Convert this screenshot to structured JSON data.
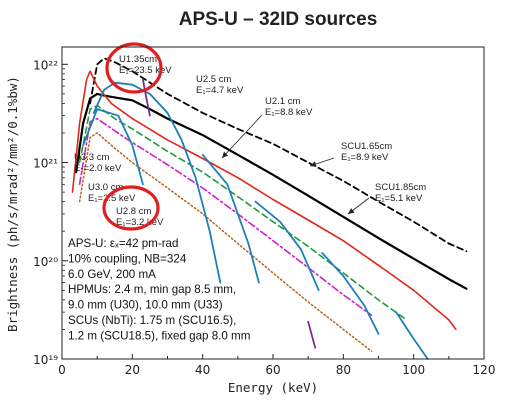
{
  "chart_data": {
    "type": "line",
    "title": "APS-U – 32ID sources",
    "xlabel": "Energy (keV)",
    "ylabel": "Brightness (ph/s/mrad²/mm²/0.1%bw)",
    "xlim": [
      0,
      120
    ],
    "ylim": [
      1e+19,
      1.5e+22
    ],
    "yscale": "log",
    "x_ticks": [
      0,
      20,
      40,
      60,
      80,
      100,
      120
    ],
    "y_ticks": [
      {
        "value": 1e+19,
        "label": "10¹⁹"
      },
      {
        "value": 1e+20,
        "label": "10²⁰"
      },
      {
        "value": 1e+21,
        "label": "10²¹"
      },
      {
        "value": 1e+22,
        "label": "10²²"
      }
    ],
    "grid": false,
    "series": [
      {
        "color": "#000000",
        "style": "solid",
        "width": 2.2,
        "segments": [
          [
            [
              4,
              8e+20
            ],
            [
              6,
              2.5e+21
            ],
            [
              8,
              4.5e+21
            ],
            [
              10,
              5e+21
            ],
            [
              12,
              4.8e+21
            ],
            [
              15,
              4.6e+21
            ],
            [
              20,
              4.3e+21
            ],
            [
              25,
              3.5e+21
            ],
            [
              30,
              2.8e+21
            ],
            [
              40,
              1.9e+21
            ],
            [
              50,
              1.2e+21
            ],
            [
              60,
              7.5e+20
            ],
            [
              70,
              4.6e+20
            ],
            [
              80,
              2.8e+20
            ],
            [
              90,
              1.7e+20
            ],
            [
              100,
              1.05e+20
            ],
            [
              110,
              6.5e+19
            ],
            [
              115,
              5.2e+19
            ]
          ]
        ]
      },
      {
        "color": "#000000",
        "style": "dashed",
        "width": 1.8,
        "segments": [
          [
            [
              8,
              4e+21
            ],
            [
              10,
              1e+22
            ],
            [
              12,
              1.15e+22
            ],
            [
              15,
              1.05e+22
            ],
            [
              20,
              8.5e+21
            ],
            [
              30,
              5e+21
            ],
            [
              40,
              3.2e+21
            ],
            [
              50,
              2.2e+21
            ],
            [
              60,
              1.55e+21
            ],
            [
              70,
              1e+21
            ],
            [
              80,
              6.5e+20
            ],
            [
              90,
              4e+20
            ],
            [
              100,
              2.5e+20
            ],
            [
              110,
              1.5e+20
            ],
            [
              115,
              1.25e+20
            ]
          ]
        ]
      },
      {
        "color": "#e1261c",
        "style": "solid",
        "width": 1.6,
        "segments": [
          [
            [
              3,
              5e+20
            ],
            [
              5,
              2.5e+21
            ],
            [
              7,
              7e+21
            ],
            [
              8,
              8.5e+21
            ],
            [
              10,
              6e+21
            ],
            [
              14,
              4e+21
            ],
            [
              20,
              2.8e+21
            ],
            [
              30,
              1.7e+21
            ],
            [
              40,
              1.1e+21
            ],
            [
              50,
              7e+20
            ],
            [
              60,
              4.2e+20
            ],
            [
              70,
              2.6e+20
            ],
            [
              80,
              1.6e+20
            ],
            [
              90,
              9e+19
            ],
            [
              100,
              5e+19
            ],
            [
              110,
              2.5e+19
            ],
            [
              112,
              2e+19
            ]
          ]
        ]
      },
      {
        "color": "#229a3a",
        "style": "dashed",
        "width": 1.6,
        "segments": [
          [
            [
              5,
              1e+21
            ],
            [
              8,
              3.5e+21
            ],
            [
              10,
              3.8e+21
            ],
            [
              15,
              2.8e+21
            ],
            [
              20,
              2.2e+21
            ],
            [
              30,
              1.3e+21
            ],
            [
              40,
              8e+20
            ],
            [
              50,
              4.5e+20
            ],
            [
              60,
              2.5e+20
            ],
            [
              70,
              1.4e+20
            ],
            [
              80,
              7.5e+19
            ],
            [
              90,
              4e+19
            ],
            [
              98,
              2.5e+19
            ]
          ]
        ]
      },
      {
        "color": "#cc22cc",
        "style": "dashdot",
        "width": 1.6,
        "segments": [
          [
            [
              5,
              6e+20
            ],
            [
              8,
              2.6e+21
            ],
            [
              10,
              2.8e+21
            ],
            [
              15,
              2.1e+21
            ],
            [
              20,
              1.6e+21
            ],
            [
              30,
              9.5e+20
            ],
            [
              40,
              5.5e+20
            ],
            [
              50,
              3e+20
            ],
            [
              60,
              1.6e+20
            ],
            [
              70,
              8.5e+19
            ],
            [
              80,
              4.5e+19
            ],
            [
              88,
              2.8e+19
            ]
          ]
        ]
      },
      {
        "color": "#b5651d",
        "style": "dotted",
        "width": 1.5,
        "segments": [
          [
            [
              5,
              4e+20
            ],
            [
              8,
              1.8e+21
            ],
            [
              10,
              2e+21
            ],
            [
              15,
              1.4e+21
            ],
            [
              20,
              1e+21
            ],
            [
              30,
              5.5e+20
            ],
            [
              40,
              3e+20
            ],
            [
              50,
              1.5e+20
            ],
            [
              60,
              7.5e+19
            ],
            [
              70,
              3.8e+19
            ],
            [
              80,
              2e+19
            ],
            [
              88,
              1.2e+19
            ]
          ]
        ]
      },
      {
        "color": "#1e7fb8",
        "style": "solid",
        "width": 1.8,
        "segments": [
          [
            [
              9,
              3.2e+21
            ],
            [
              12,
              5.5e+21
            ],
            [
              15,
              6.5e+21
            ],
            [
              20,
              6.2e+21
            ],
            [
              25,
              5e+21
            ],
            [
              30,
              3.2e+21
            ],
            [
              34,
              1.7e+21
            ],
            [
              38,
              7e+20
            ],
            [
              42,
              2e+20
            ],
            [
              45,
              6e+19
            ]
          ],
          [
            [
              6,
              1.5e+21
            ],
            [
              10,
              3.5e+21
            ],
            [
              16,
              3e+21
            ],
            [
              20,
              1.5e+21
            ],
            [
              23,
              6e+20
            ]
          ],
          [
            [
              40,
              1.2e+21
            ],
            [
              47,
              6e+20
            ],
            [
              53,
              1.5e+20
            ],
            [
              56,
              6e+19
            ]
          ],
          [
            [
              55,
              4e+20
            ],
            [
              62,
              2.5e+20
            ],
            [
              68,
              1.3e+20
            ],
            [
              73,
              5e+19
            ]
          ],
          [
            [
              74,
              1.2e+20
            ],
            [
              80,
              7e+19
            ],
            [
              86,
              3.5e+19
            ],
            [
              90,
              1.8e+19
            ]
          ],
          [
            [
              95,
              3e+19
            ],
            [
              100,
              1.6e+19
            ],
            [
              104,
              1e+19
            ]
          ]
        ]
      },
      {
        "color": "#7b2d8e",
        "style": "solid",
        "width": 1.8,
        "segments": [
          [
            [
              23,
              7e+21
            ],
            [
              24,
              4.5e+21
            ],
            [
              25,
              3e+21
            ]
          ],
          [
            [
              70,
              2.4e+19
            ],
            [
              72,
              1.3e+19
            ]
          ]
        ]
      }
    ],
    "annotations": [
      {
        "lines": [
          "U1.35cm",
          "E₁=23.5 keV"
        ],
        "circled": true
      },
      {
        "lines": [
          "U2.5 cm",
          "E₁=4.7 keV"
        ]
      },
      {
        "lines": [
          "U2.1 cm",
          "E₁=8.8 keV"
        ]
      },
      {
        "lines": [
          "SCU1.65cm",
          "E₁=8.9 keV"
        ]
      },
      {
        "lines": [
          "SCU1.85cm",
          "E₁=5.1 keV"
        ]
      },
      {
        "lines": [
          "U3.3 cm",
          "E₁=2.0 keV"
        ]
      },
      {
        "lines": [
          "U3.0 cm",
          "E₁=2.5 keV"
        ]
      },
      {
        "lines": [
          "U2.8 cm",
          "E₁=3.2 keV"
        ],
        "circled": true
      }
    ],
    "info_box": [
      "APS-U: εₓ=42 pm-rad",
      "10% coupling, NB=324",
      "6.0 GeV, 200 mA",
      "HPMUs: 2.4 m, min gap 8.5 mm,",
      "9.0 mm (U30), 10.0 mm (U33)",
      "SCUs (NbTi): 1.75 m (SCU16.5),",
      "1.2 m (SCU18.5), fixed gap 8.0 mm"
    ]
  }
}
